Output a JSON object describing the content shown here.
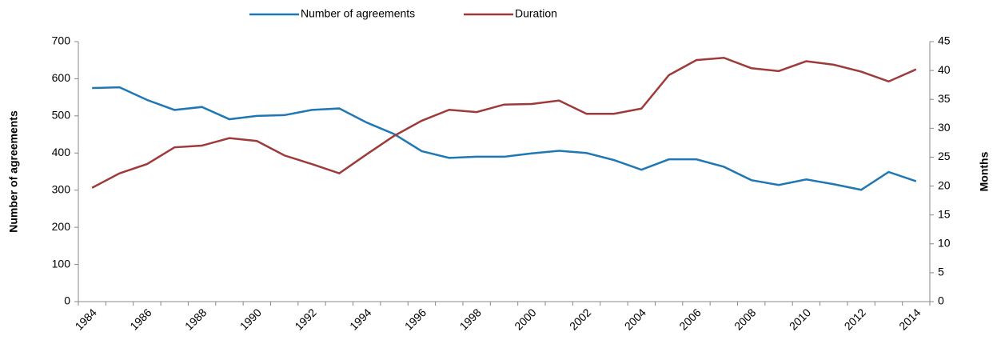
{
  "chart_data": {
    "type": "line",
    "categories": [
      "1984",
      null,
      "1986",
      null,
      "1988",
      null,
      "1990",
      null,
      "1992",
      null,
      "1994",
      null,
      "1996",
      null,
      "1998",
      null,
      "2000",
      null,
      "2002",
      null,
      "2004",
      null,
      "2006",
      null,
      "2008",
      null,
      "2010",
      null,
      "2012",
      null,
      "2014"
    ],
    "series": [
      {
        "name": "Number of agreements",
        "color": "#1f77b4",
        "values": [
          575,
          577,
          543,
          516,
          524,
          491,
          500,
          502,
          516,
          520,
          482,
          451,
          405,
          387,
          390,
          390,
          399,
          406,
          400,
          381,
          355,
          383,
          383,
          363,
          327,
          314,
          329,
          316,
          301,
          349,
          324
        ]
      },
      {
        "name": "Duration",
        "color": "#9e3a3a",
        "axis": "y2",
        "values": [
          19.7,
          22.2,
          23.8,
          26.7,
          27.0,
          28.3,
          27.8,
          25.3,
          23.8,
          22.2,
          25.5,
          28.7,
          31.3,
          33.2,
          32.8,
          34.1,
          34.2,
          34.8,
          32.5,
          32.5,
          33.4,
          39.2,
          41.8,
          42.2,
          40.4,
          39.9,
          41.6,
          41.0,
          39.8,
          38.1,
          40.2
        ]
      }
    ],
    "ylabel": "Number of agreements",
    "y2label": "Months",
    "ylim": [
      0,
      700
    ],
    "yticks": [
      0,
      100,
      200,
      300,
      400,
      500,
      600,
      700
    ],
    "y2lim": [
      0,
      45
    ],
    "y2ticks": [
      0,
      5,
      10,
      15,
      20,
      25,
      30,
      35,
      40,
      45
    ],
    "legend": "top"
  }
}
